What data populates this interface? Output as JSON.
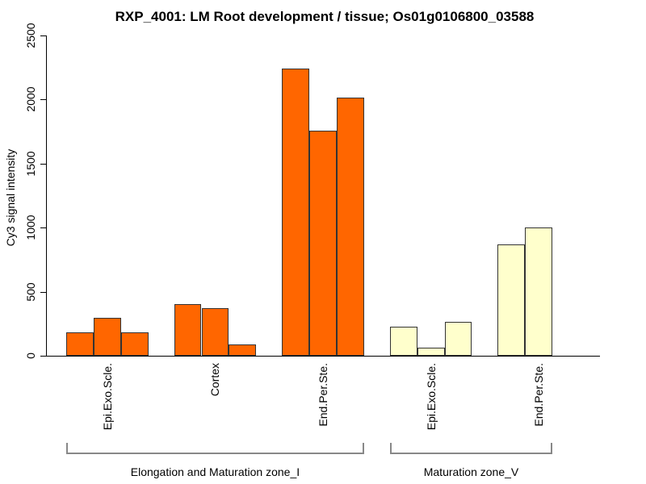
{
  "title": "RXP_4001: LM Root development / tissue; Os01g0106800_03588",
  "chart_data": {
    "type": "bar",
    "title": "RXP_4001: LM Root development / tissue; Os01g0106800_03588",
    "xlabel": "",
    "ylabel": "Cy3 signal intensity",
    "ylim": [
      0,
      2500
    ],
    "yticks": [
      "0",
      "500",
      "1000",
      "1500",
      "2000",
      "2500"
    ],
    "ytick_values": [
      0,
      500,
      1000,
      1500,
      2000,
      2500
    ],
    "grid": false,
    "legend_position": "none",
    "bar_border_color": "#333333",
    "axis_color": "#000000",
    "bracket_color": "#888888",
    "background_color": "#ffffff",
    "zones": [
      {
        "label": "Elongation and Maturation zone_I",
        "bar_color": "#FF6600",
        "groups": [
          {
            "label": "Epi.Exo.Scle.",
            "values": [
              185,
              295,
              185
            ]
          },
          {
            "label": "Cortex",
            "values": [
              405,
              370,
              90
            ]
          },
          {
            "label": "End.Per.Ste.",
            "values": [
              2240,
              1760,
              2015
            ]
          }
        ]
      },
      {
        "label": "Maturation zone_V",
        "bar_color": "#FFFFCC",
        "groups": [
          {
            "label": "Epi.Exo.Scle.",
            "values": [
              225,
              65,
              262
            ]
          },
          {
            "label": "End.Per.Ste.",
            "values": [
              870,
              1000
            ]
          }
        ]
      }
    ]
  }
}
